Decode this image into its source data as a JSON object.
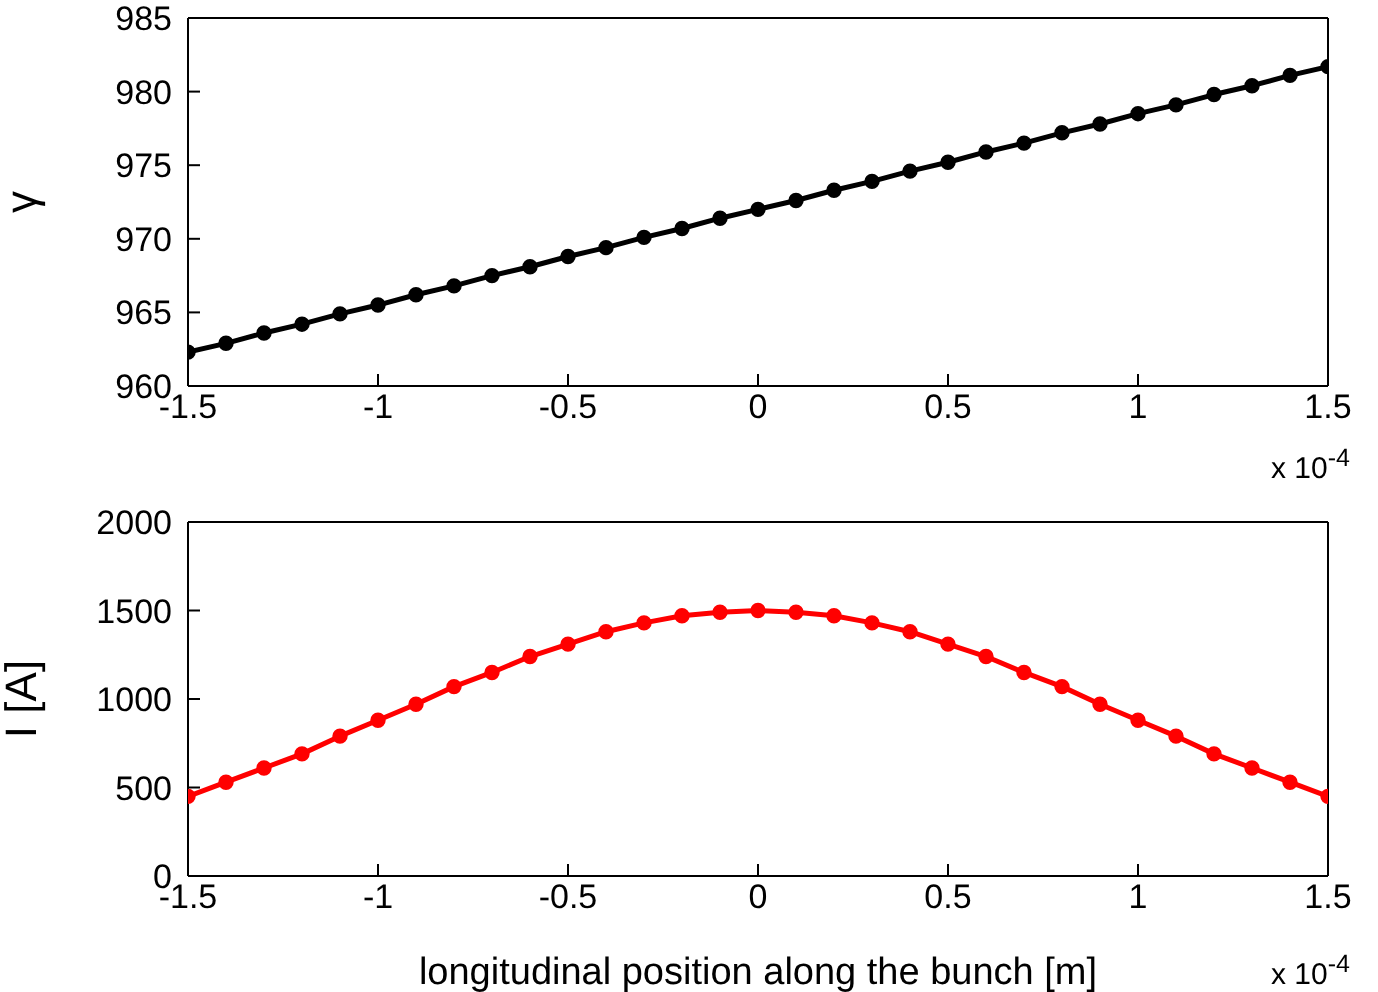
{
  "chart_data": [
    {
      "type": "line",
      "ylabel": "γ",
      "x": [
        -1.5,
        -1.4,
        -1.3,
        -1.2,
        -1.1,
        -1.0,
        -0.9,
        -0.8,
        -0.7,
        -0.6,
        -0.5,
        -0.4,
        -0.3,
        -0.2,
        -0.1,
        0,
        0.1,
        0.2,
        0.3,
        0.4,
        0.5,
        0.6,
        0.7,
        0.8,
        0.9,
        1.0,
        1.1,
        1.2,
        1.3,
        1.4,
        1.5
      ],
      "series": [
        {
          "color": "#000000",
          "values": [
            962.3,
            962.9,
            963.6,
            964.2,
            964.9,
            965.5,
            966.2,
            966.8,
            967.5,
            968.1,
            968.8,
            969.4,
            970.1,
            970.7,
            971.4,
            972.0,
            972.6,
            973.3,
            973.9,
            974.6,
            975.2,
            975.9,
            976.5,
            977.2,
            977.8,
            978.5,
            979.1,
            979.8,
            980.4,
            981.1,
            981.7
          ]
        }
      ],
      "xlim": [
        -1.5,
        1.5
      ],
      "xticks": [
        -1.5,
        -1,
        -0.5,
        0,
        0.5,
        1,
        1.5
      ],
      "ylim": [
        960,
        985
      ],
      "yticks": [
        960,
        965,
        970,
        975,
        980,
        985
      ],
      "marker": "circle",
      "line_style": "solid",
      "grid": false,
      "legend": false,
      "annotations": [
        "x 10$^{-4}$"
      ]
    },
    {
      "type": "line",
      "xlabel": "longitudinal position along the bunch [m]",
      "ylabel": "I [A]",
      "x": [
        -1.5,
        -1.4,
        -1.3,
        -1.2,
        -1.1,
        -1.0,
        -0.9,
        -0.8,
        -0.7,
        -0.6,
        -0.5,
        -0.4,
        -0.3,
        -0.2,
        -0.1,
        0,
        0.1,
        0.2,
        0.3,
        0.4,
        0.5,
        0.6,
        0.7,
        0.8,
        0.9,
        1.0,
        1.1,
        1.2,
        1.3,
        1.4,
        1.5
      ],
      "series": [
        {
          "color": "#ff0000",
          "values": [
            450,
            530,
            610,
            690,
            790,
            880,
            970,
            1070,
            1150,
            1240,
            1310,
            1380,
            1430,
            1470,
            1490,
            1500,
            1490,
            1470,
            1430,
            1380,
            1310,
            1240,
            1150,
            1070,
            970,
            880,
            790,
            690,
            610,
            530,
            450
          ]
        }
      ],
      "xlim": [
        -1.5,
        1.5
      ],
      "xticks": [
        -1.5,
        -1,
        -0.5,
        0,
        0.5,
        1,
        1.5
      ],
      "ylim": [
        0,
        2000
      ],
      "yticks": [
        0,
        500,
        1000,
        1500,
        2000
      ],
      "marker": "circle",
      "line_style": "solid",
      "grid": false,
      "legend": false,
      "annotations": [
        "x 10$^{-4}$"
      ]
    }
  ]
}
